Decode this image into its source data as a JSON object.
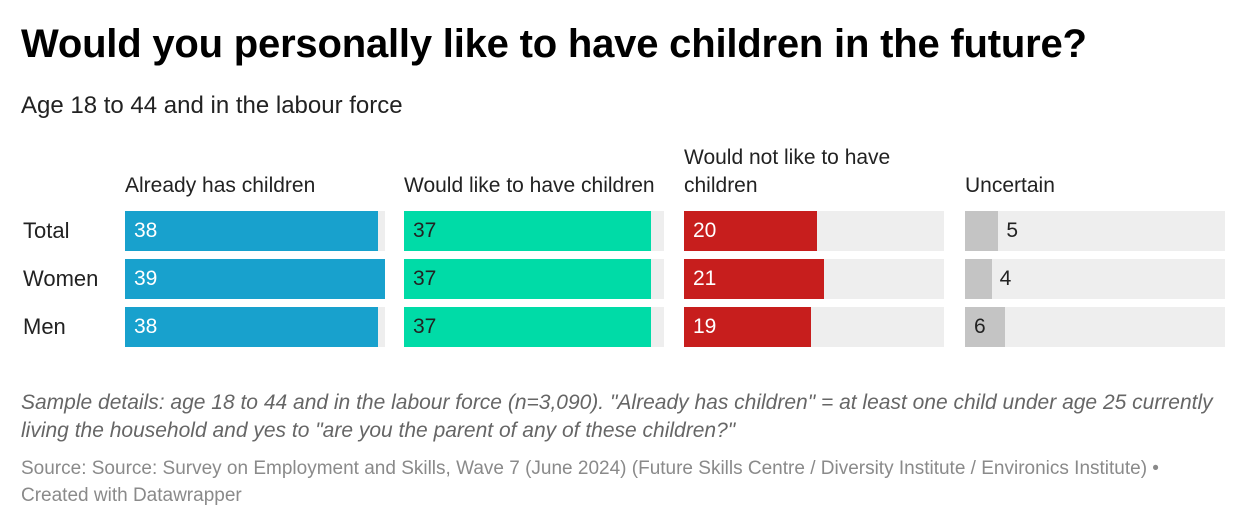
{
  "title": "Would you personally like to have children in the future?",
  "subtitle": "Age 18 to 44 and in the labour force",
  "colors": {
    "already": "#18a1cd",
    "would_like": "#00dba7",
    "would_not": "#c71e1d",
    "uncertain": "#c4c4c4",
    "track": "#eeeeee"
  },
  "chart_data": {
    "type": "bar",
    "title": "Would you personally like to have children in the future?",
    "subtitle": "Age 18 to 44 and in the labour force",
    "categories": [
      "Total",
      "Women",
      "Men"
    ],
    "series": [
      {
        "name": "Already has children",
        "values": [
          38,
          39,
          38
        ]
      },
      {
        "name": "Would like to have children",
        "values": [
          37,
          37,
          37
        ]
      },
      {
        "name": "Would not like to have children",
        "values": [
          20,
          21,
          19
        ]
      },
      {
        "name": "Uncertain",
        "values": [
          5,
          4,
          6
        ]
      }
    ],
    "xlim": [
      0,
      39
    ],
    "grid": false,
    "legend": "column headers above each panel"
  },
  "notes": "Sample details: age 18 to 44 and in the labour force (n=3,090). \"Already has children\" = at least one child under age 25 currently living the household and yes to \"are you the parent of any of these children?\"",
  "source": "Source: Source: Survey on Employment and Skills, Wave 7 (June 2024) (Future Skills Centre / Diversity Institute / Environics Institute) • Created with Datawrapper"
}
